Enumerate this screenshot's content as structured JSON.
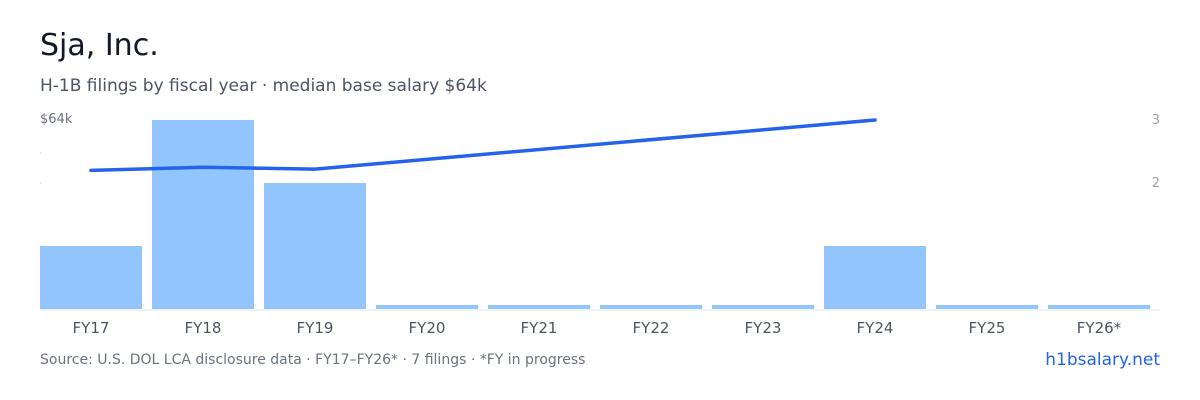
{
  "header": {
    "title": "Sja, Inc.",
    "subtitle": "H-1B filings by fiscal year · median base salary $64k"
  },
  "chart_data": {
    "type": "bar",
    "categories": [
      "FY17",
      "FY18",
      "FY19",
      "FY20",
      "FY21",
      "FY22",
      "FY23",
      "FY24",
      "FY25",
      "FY26*"
    ],
    "series": [
      {
        "values": [
          1,
          3,
          2,
          0,
          0,
          0,
          0,
          1,
          0,
          0
        ],
        "type": "bar",
        "axis": "left"
      },
      {
        "values": [
          2.2,
          2.25,
          2.22,
          null,
          null,
          null,
          null,
          3,
          null,
          null
        ],
        "type": "line",
        "axis": "right"
      }
    ],
    "left_axis": {
      "ylim": [
        0,
        3
      ],
      "max_label": "$64k"
    },
    "right_axis": {
      "ylim": [
        0,
        3
      ],
      "ticks": [
        2,
        3
      ]
    },
    "grid": false,
    "colors": {
      "bar": "#93c5fd",
      "line": "#2563eb",
      "axis": "#e5e7eb",
      "tick": "#4b5563",
      "right_tick": "#9ca3af"
    }
  },
  "footer": {
    "source": "Source: U.S. DOL LCA disclosure data · FY17–FY26* · 7 filings · *FY in progress",
    "brand": "h1bsalary.net"
  }
}
